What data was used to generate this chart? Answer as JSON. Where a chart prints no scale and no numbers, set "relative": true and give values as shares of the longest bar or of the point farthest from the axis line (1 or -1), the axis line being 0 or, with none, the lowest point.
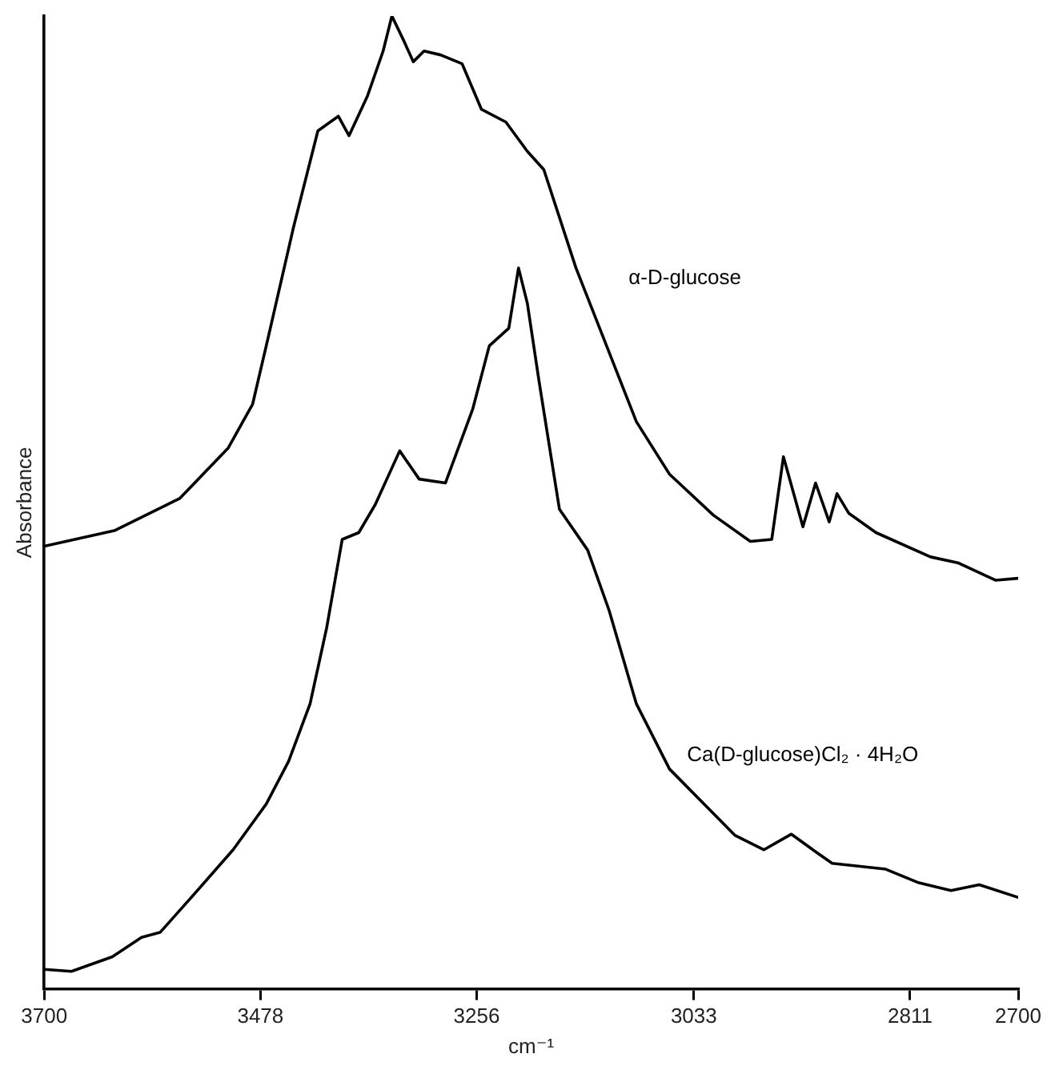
{
  "chart_data": {
    "type": "line",
    "xlabel": "cm⁻¹",
    "ylabel": "Absorbance",
    "relative": true,
    "xlim": [
      3700,
      2700
    ],
    "xticks": [
      3700,
      3478,
      3256,
      3033,
      2811,
      2700
    ],
    "marker": "none",
    "line_style": "solid",
    "series": [
      {
        "name": "α-D-glucose",
        "color": "#000000",
        "x": [
          3700,
          3628,
          3561,
          3511,
          3486,
          3469,
          3444,
          3419,
          3398,
          3387,
          3368,
          3352,
          3343,
          3331,
          3321,
          3310,
          3293,
          3271,
          3251,
          3226,
          3204,
          3187,
          3154,
          3092,
          3058,
          3013,
          2975,
          2953,
          2941,
          2921,
          2908,
          2894,
          2886,
          2874,
          2846,
          2790,
          2762,
          2723,
          2700
        ],
        "values": [
          0.455,
          0.471,
          0.504,
          0.556,
          0.601,
          0.674,
          0.783,
          0.882,
          0.897,
          0.877,
          0.918,
          0.964,
          1.0,
          0.975,
          0.953,
          0.964,
          0.96,
          0.951,
          0.904,
          0.891,
          0.861,
          0.842,
          0.741,
          0.583,
          0.529,
          0.487,
          0.46,
          0.462,
          0.547,
          0.475,
          0.52,
          0.48,
          0.509,
          0.489,
          0.469,
          0.444,
          0.438,
          0.42,
          0.422
        ]
      },
      {
        "name": "Ca(D-glucose)Cl₂ · 4H₂O",
        "color": "#000000",
        "x": [
          3700,
          3672,
          3630,
          3600,
          3581,
          3549,
          3506,
          3472,
          3449,
          3427,
          3410,
          3394,
          3377,
          3360,
          3335,
          3315,
          3288,
          3260,
          3243,
          3223,
          3213,
          3204,
          3192,
          3171,
          3142,
          3120,
          3092,
          3058,
          2991,
          2961,
          2933,
          2908,
          2891,
          2836,
          2802,
          2769,
          2740,
          2700
        ],
        "values": [
          0.02,
          0.018,
          0.033,
          0.053,
          0.058,
          0.094,
          0.143,
          0.19,
          0.234,
          0.293,
          0.371,
          0.462,
          0.469,
          0.498,
          0.553,
          0.524,
          0.52,
          0.596,
          0.661,
          0.679,
          0.741,
          0.705,
          0.625,
          0.493,
          0.451,
          0.389,
          0.293,
          0.226,
          0.158,
          0.143,
          0.159,
          0.141,
          0.129,
          0.123,
          0.109,
          0.101,
          0.107,
          0.094
        ]
      }
    ]
  }
}
